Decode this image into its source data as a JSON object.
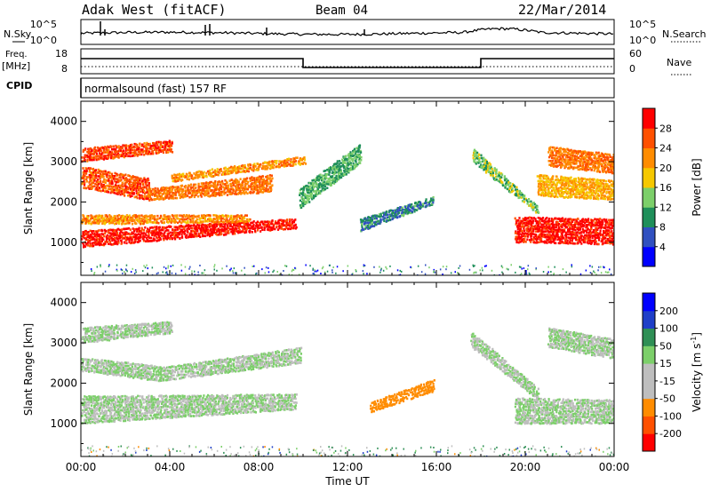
{
  "header": {
    "station": "Adak West (fitACF)",
    "beam": "Beam 04",
    "date": "22/Mar/2014"
  },
  "strips": {
    "nsky_label": "N.Sky",
    "nsearch_label": "N.Search",
    "count_ticks": [
      "10^5",
      "10^0"
    ],
    "freq_label": "Freq.",
    "freq_unit": "[MHz]",
    "freq_ticks": [
      "18",
      "8"
    ],
    "nave_label": "Nave",
    "nave_ticks": [
      "60",
      "0"
    ],
    "cpid_label": "CPID",
    "cpid_value": "normalsound (fast) 157 RF"
  },
  "colors": {
    "power": [
      "#0000ff",
      "#3050c0",
      "#1f8f5a",
      "#7ccf6a",
      "#f6c800",
      "#ff8c00",
      "#ff5000",
      "#ff0000"
    ],
    "velocity": [
      "#ff0000",
      "#ff5000",
      "#ff8c00",
      "#bebebe",
      "#bebebe",
      "#7ccf6a",
      "#2f8f55",
      "#1f3fc8",
      "#0000ff"
    ]
  },
  "chart_data": [
    {
      "type": "heatmap",
      "ylabel": "Slant Range [km]",
      "xlabel": "Time UT",
      "x_ticks": [
        "00:00",
        "04:00",
        "08:00",
        "12:00",
        "16:00",
        "20:00",
        "00:00"
      ],
      "y_ticks": [
        1000,
        2000,
        3000,
        4000
      ],
      "ylim": [
        180,
        4500
      ],
      "xlim_hours": [
        0,
        24
      ],
      "colorbar": {
        "label": "Power [dB]",
        "ticks": [
          4,
          8,
          12,
          16,
          20,
          24,
          28
        ],
        "range": [
          0,
          32
        ]
      },
      "regions": [
        {
          "t": [
            0,
            9.6
          ],
          "r_lo": [
            880,
            1350
          ],
          "r_hi": [
            1310,
            1600
          ],
          "value": 30
        },
        {
          "t": [
            0,
            7.5
          ],
          "r_lo": [
            1450,
            1500
          ],
          "r_hi": [
            1700,
            1700
          ],
          "value": 22
        },
        {
          "t": [
            0,
            3.0
          ],
          "r_lo": [
            2350,
            2050
          ],
          "r_hi": [
            2900,
            2600
          ],
          "value": 26
        },
        {
          "t": [
            3.0,
            8.5
          ],
          "r_lo": [
            2050,
            2250
          ],
          "r_hi": [
            2350,
            2700
          ],
          "value": 24
        },
        {
          "t": [
            0,
            4.0
          ],
          "r_lo": [
            3000,
            3250
          ],
          "r_hi": [
            3350,
            3550
          ],
          "value": 27
        },
        {
          "t": [
            4.0,
            10.0
          ],
          "r_lo": [
            2500,
            2950
          ],
          "r_hi": [
            2700,
            3150
          ],
          "value": 22
        },
        {
          "t": [
            9.8,
            12.5
          ],
          "r_lo": [
            1850,
            2950
          ],
          "r_hi": [
            2350,
            3450
          ],
          "value": 12
        },
        {
          "t": [
            12.5,
            15.8
          ],
          "r_lo": [
            1280,
            1950
          ],
          "r_hi": [
            1600,
            2150
          ],
          "value": 9
        },
        {
          "t": [
            17.6,
            20.5
          ],
          "r_lo": [
            3000,
            1700
          ],
          "r_hi": [
            3350,
            1900
          ],
          "value": 14
        },
        {
          "t": [
            19.5,
            24.0
          ],
          "r_lo": [
            1000,
            950
          ],
          "r_hi": [
            1650,
            1600
          ],
          "value": 30
        },
        {
          "t": [
            20.5,
            24.0
          ],
          "r_lo": [
            2150,
            2050
          ],
          "r_hi": [
            2700,
            2550
          ],
          "value": 20
        },
        {
          "t": [
            21.0,
            24.0
          ],
          "r_lo": [
            2900,
            2700
          ],
          "r_hi": [
            3400,
            3200
          ],
          "value": 24
        }
      ]
    },
    {
      "type": "heatmap",
      "ylabel": "Slant Range [km]",
      "xlabel": "Time UT",
      "x_ticks": [
        "00:00",
        "04:00",
        "08:00",
        "12:00",
        "16:00",
        "20:00",
        "00:00"
      ],
      "y_ticks": [
        1000,
        2000,
        3000,
        4000
      ],
      "ylim": [
        180,
        4500
      ],
      "xlim_hours": [
        0,
        24
      ],
      "colorbar": {
        "label": "Velocity [m s^-1]",
        "ticks": [
          -200,
          -100,
          -50,
          -15,
          15,
          50,
          100,
          200
        ],
        "range": [
          -250,
          250
        ]
      },
      "regions": [
        {
          "t": [
            0,
            9.6
          ],
          "r_lo": [
            1000,
            1350
          ],
          "r_hi": [
            1700,
            1750
          ],
          "value": 0
        },
        {
          "t": [
            0,
            3.5
          ],
          "r_lo": [
            2300,
            2050
          ],
          "r_hi": [
            2650,
            2450
          ],
          "value": 0
        },
        {
          "t": [
            3.5,
            9.8
          ],
          "r_lo": [
            2050,
            2500
          ],
          "r_hi": [
            2400,
            2900
          ],
          "value": 0
        },
        {
          "t": [
            0,
            4.0
          ],
          "r_lo": [
            3000,
            3250
          ],
          "r_hi": [
            3400,
            3550
          ],
          "value": 0
        },
        {
          "t": [
            13.0,
            15.8
          ],
          "r_lo": [
            1280,
            1800
          ],
          "r_hi": [
            1550,
            2100
          ],
          "value": -70
        },
        {
          "t": [
            17.5,
            20.5
          ],
          "r_lo": [
            2900,
            1600
          ],
          "r_hi": [
            3300,
            1900
          ],
          "value": 0
        },
        {
          "t": [
            19.5,
            24.0
          ],
          "r_lo": [
            1000,
            1000
          ],
          "r_hi": [
            1650,
            1600
          ],
          "value": 0
        },
        {
          "t": [
            21.0,
            24.0
          ],
          "r_lo": [
            2900,
            2600
          ],
          "r_hi": [
            3400,
            3100
          ],
          "value": 0
        }
      ]
    }
  ]
}
